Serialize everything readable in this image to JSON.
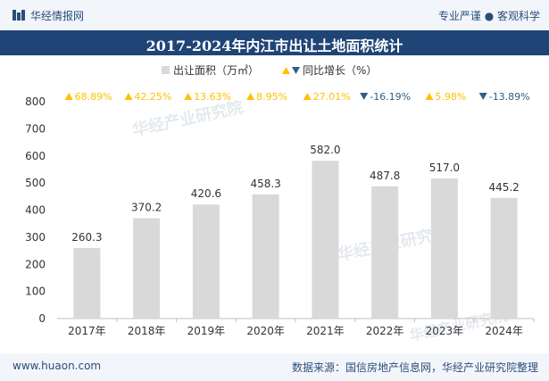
{
  "header": {
    "brand": "华经情报网",
    "tagline": "专业严谨 ● 客观科学"
  },
  "chart_data": {
    "type": "bar",
    "title": "2017-2024年内江市出让土地面积统计",
    "categories": [
      "2017年",
      "2018年",
      "2019年",
      "2020年",
      "2021年",
      "2022年",
      "2023年",
      "2024年"
    ],
    "series": [
      {
        "name": "出让面积（万㎡）",
        "values": [
          260.3,
          370.2,
          420.6,
          458.3,
          582.0,
          487.8,
          517.0,
          445.2
        ]
      },
      {
        "name": "同比增长（%）",
        "values": [
          68.89,
          42.25,
          13.63,
          8.95,
          27.01,
          -16.19,
          5.98,
          -13.89
        ]
      }
    ],
    "value_labels": [
      "260.3",
      "370.2",
      "420.6",
      "458.3",
      "582.0",
      "487.8",
      "517.0",
      "445.2"
    ],
    "growth_labels": [
      "68.89%",
      "42.25%",
      "13.63%",
      "8.95%",
      "27.01%",
      "-16.19%",
      "5.98%",
      "-13.89%"
    ],
    "ylim": [
      0,
      800
    ],
    "yticks": [
      0,
      100,
      200,
      300,
      400,
      500,
      600,
      700,
      800
    ],
    "legend_position": "top",
    "grid": false,
    "colors": {
      "bar": "#d9d9d9",
      "up": "#ffc000",
      "down": "#2f5f85",
      "header_bg": "#1f4476",
      "text": "#333333"
    }
  },
  "watermark": {
    "text": "华经产业研究院",
    "url": "www.huaon.com"
  },
  "footer": {
    "site": "www.huaon.com",
    "source": "数据来源：国信房地产信息网，华经产业研究院整理"
  }
}
